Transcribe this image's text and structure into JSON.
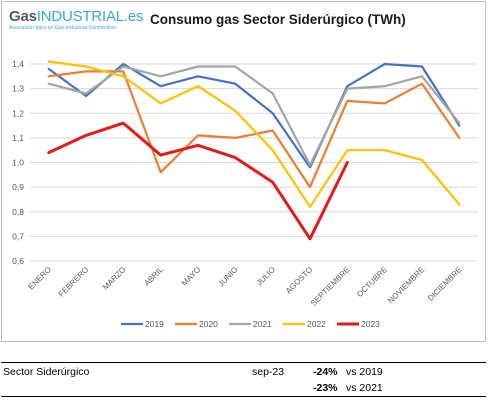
{
  "logo": {
    "gas": "Gas",
    "industrial": "INDUSTRIAL.es",
    "tagline": "Asociación para un Gas Industrial Competitivo"
  },
  "summary": {
    "sector": "Sector Siderúrgico",
    "period": "sep-23",
    "row1_pct": "-24%",
    "row1_vs": "vs 2019",
    "row2_pct": "-23%",
    "row2_vs": "vs 2021"
  },
  "chart_data": {
    "type": "line",
    "title": "Consumo gas Sector Siderúrgico (TWh)",
    "xlabel": "",
    "ylabel": "",
    "categories": [
      "ENERO",
      "FEBRERO",
      "MARZO",
      "ABRIL",
      "MAYO",
      "JUNIO",
      "JULIO",
      "AGOSTO",
      "SEPTIEMBRE",
      "OCTUBRE",
      "NOVIEMBRE",
      "DICIEMBRE"
    ],
    "ylim": [
      0.6,
      1.4
    ],
    "yticks": [
      0.6,
      0.7,
      0.8,
      0.9,
      1.0,
      1.1,
      1.2,
      1.3,
      1.4
    ],
    "ytick_labels": [
      "0,6",
      "0,7",
      "0,8",
      "0,9",
      "1,0",
      "1,1",
      "1,2",
      "1,3",
      "1,4"
    ],
    "grid": "horizontal",
    "legend": "bottom",
    "series": [
      {
        "name": "2019",
        "color": "#4472c4",
        "width": 2.2,
        "values": [
          1.38,
          1.27,
          1.4,
          1.31,
          1.35,
          1.32,
          1.2,
          0.98,
          1.31,
          1.4,
          1.39,
          1.15
        ]
      },
      {
        "name": "2020",
        "color": "#ed7d31",
        "width": 2.2,
        "values": [
          1.35,
          1.37,
          1.37,
          0.96,
          1.11,
          1.1,
          1.13,
          0.9,
          1.25,
          1.24,
          1.32,
          1.1
        ]
      },
      {
        "name": "2021",
        "color": "#a5a5a5",
        "width": 2.2,
        "values": [
          1.32,
          1.28,
          1.39,
          1.35,
          1.39,
          1.39,
          1.28,
          0.99,
          1.3,
          1.31,
          1.35,
          1.16
        ]
      },
      {
        "name": "2022",
        "color": "#ffc000",
        "width": 2.2,
        "values": [
          1.41,
          1.39,
          1.35,
          1.24,
          1.31,
          1.21,
          1.05,
          0.82,
          1.05,
          1.05,
          1.01,
          0.83
        ]
      },
      {
        "name": "2023",
        "color": "#e41a1c",
        "width": 3,
        "values": [
          1.04,
          1.11,
          1.16,
          1.03,
          1.07,
          1.02,
          0.92,
          0.69,
          1.0,
          null,
          null,
          null
        ]
      }
    ]
  }
}
